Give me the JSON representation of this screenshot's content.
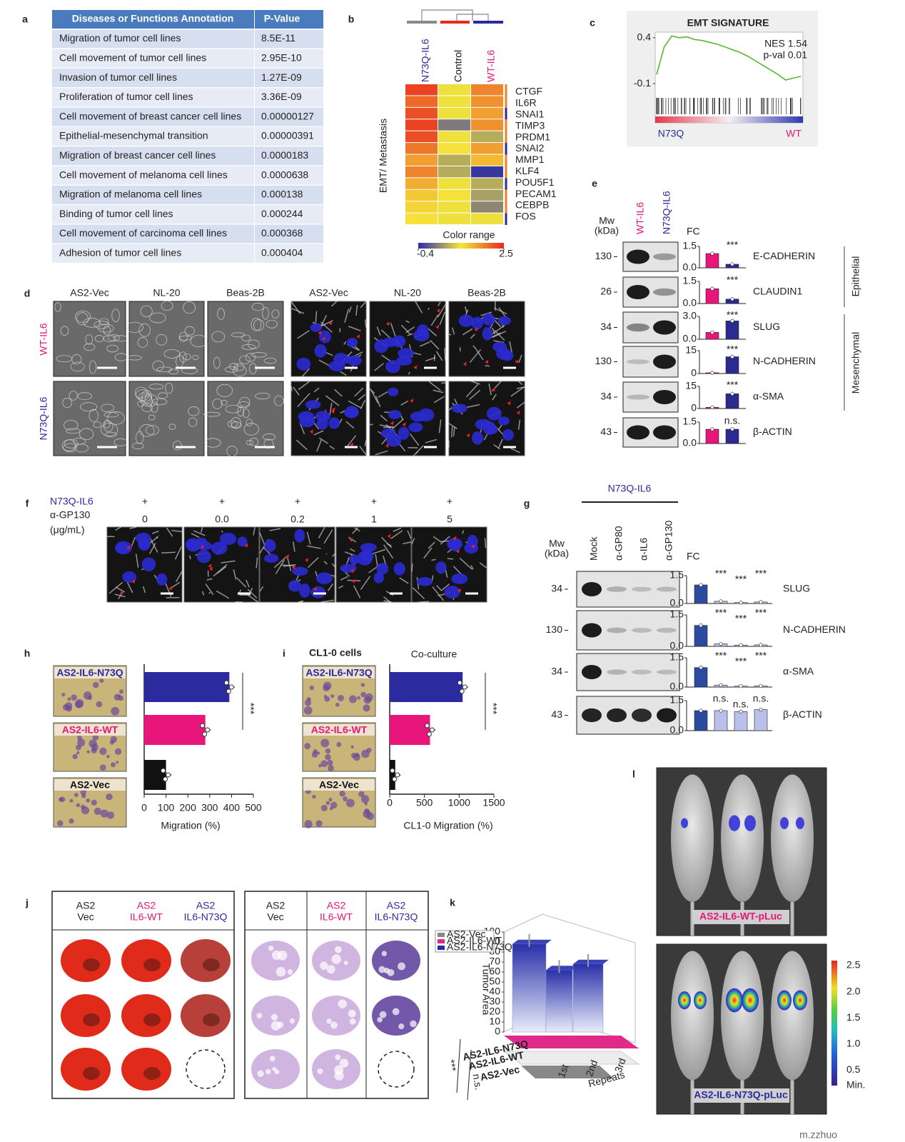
{
  "panel_labels": [
    "a",
    "b",
    "c",
    "d",
    "e",
    "f",
    "g",
    "h",
    "i",
    "j",
    "k",
    "l"
  ],
  "a": {
    "header": [
      "Diseases or Functions Annotation",
      "P-Value"
    ],
    "rows": [
      [
        "Migration of tumor cell lines",
        "8.5E-11"
      ],
      [
        "Cell movement of tumor cell lines",
        "2.95E-10"
      ],
      [
        "Invasion of tumor cell lines",
        "1.27E-09"
      ],
      [
        "Proliferation of tumor cell lines",
        "3.36E-09"
      ],
      [
        "Cell movement of breast cancer cell lines",
        "0.00000127"
      ],
      [
        "Epithelial-mesenchymal transition",
        "0.00000391"
      ],
      [
        "Migration of breast cancer cell lines",
        "0.0000183"
      ],
      [
        "Cell movement of melanoma cell lines",
        "0.0000638"
      ],
      [
        "Migration of melanoma cell lines",
        "0.000138"
      ],
      [
        "Binding of tumor cell lines",
        "0.000244"
      ],
      [
        "Cell movement of carcinoma cell lines",
        "0.000368"
      ],
      [
        "Adhesion of tumor cell lines",
        "0.000404"
      ]
    ]
  },
  "b": {
    "columns": [
      "N73Q-IL6",
      "Control",
      "WT-IL6"
    ],
    "column_colors": [
      "#2b2b9f",
      "#111111",
      "#e8157a"
    ],
    "ylabel": "EMT/ Metastasis",
    "genes": [
      "CTGF",
      "IL6R",
      "SNAI1",
      "TIMP3",
      "PRDM1",
      "SNAI2",
      "MMP1",
      "KLF4",
      "POU5F1",
      "PECAM1",
      "CEBPB",
      "FOS"
    ],
    "matrix": [
      [
        2.3,
        1.0,
        1.8
      ],
      [
        2.0,
        1.0,
        1.7
      ],
      [
        2.2,
        1.0,
        1.6
      ],
      [
        2.3,
        0.2,
        1.7
      ],
      [
        2.2,
        1.0,
        0.6
      ],
      [
        1.9,
        1.1,
        1.6
      ],
      [
        1.6,
        0.6,
        1.4
      ],
      [
        1.8,
        0.6,
        -0.3
      ],
      [
        1.5,
        1.0,
        0.6
      ],
      [
        1.3,
        1.1,
        0.5
      ],
      [
        1.2,
        1.0,
        0.3
      ],
      [
        1.1,
        1.0,
        1.0
      ]
    ],
    "colorbar": {
      "title": "Color range",
      "min": -0.4,
      "max": 2.5,
      "colors": [
        "#2a2aa8",
        "#f5e83a",
        "#e8271f"
      ]
    }
  },
  "c": {
    "title": "EMT SIGNATURE",
    "ylim": [
      -0.2,
      0.5
    ],
    "yticks": [
      0.4,
      -0.1
    ],
    "nes": "NES 1.54",
    "pval": "p-val 0.01",
    "left_label": "N73Q",
    "right_label": "WT",
    "curve": [
      0,
      0.3,
      0.42,
      0.4,
      0.41,
      0.38,
      0.37,
      0.35,
      0.33,
      0.3,
      0.27,
      0.24,
      0.2,
      0.15,
      0.1,
      0.05,
      0.0,
      -0.06,
      -0.04,
      -0.02
    ],
    "color": "#5cb531"
  },
  "d": {
    "columns": [
      "AS2-Vec",
      "NL-20",
      "Beas-2B",
      "AS2-Vec",
      "NL-20",
      "Beas-2B"
    ],
    "rows": [
      "WT-IL6",
      "N73Q-IL6"
    ]
  },
  "e": {
    "lanes": [
      "WT-IL6",
      "N73Q-IL6"
    ],
    "mw_label": [
      "Mw",
      "(kDa)"
    ],
    "fc_label": "FC",
    "groups": [
      "Epithelial",
      "Mesenchymal"
    ],
    "colors": [
      "#e8157a",
      "#2b2b8f"
    ],
    "rows": [
      {
        "mw": 130,
        "protein": "E-CADHERIN",
        "yticks": [
          {
            "value": 0,
            "label": "0.0"
          },
          {
            "value": 1.5,
            "label": "1.5"
          }
        ],
        "values": [
          1.0,
          0.25
        ],
        "sig": "***"
      },
      {
        "mw": 26,
        "protein": "CLAUDIN1",
        "yticks": [
          {
            "value": 0,
            "label": "0.0"
          },
          {
            "value": 1.5,
            "label": "1.5"
          }
        ],
        "values": [
          1.0,
          0.3
        ],
        "sig": "***"
      },
      {
        "mw": 34,
        "protein": "SLUG",
        "yticks": [
          {
            "value": 0,
            "label": "0.0"
          },
          {
            "value": 3,
            "label": "3.0"
          }
        ],
        "values": [
          0.9,
          2.4
        ],
        "sig": "***"
      },
      {
        "mw": 130,
        "protein": "N-CADHERIN",
        "yticks": [
          0,
          15
        ],
        "values": [
          0.5,
          11
        ],
        "sig": "***"
      },
      {
        "mw": 34,
        "protein": "α-SMA",
        "yticks": [
          0,
          15
        ],
        "values": [
          0.8,
          10
        ],
        "sig": "***"
      },
      {
        "mw": 43,
        "protein": "β-ACTIN",
        "yticks": [
          {
            "value": 0,
            "label": "0.0"
          },
          {
            "value": 1.5,
            "label": "1.5"
          }
        ],
        "values": [
          1.0,
          1.0
        ],
        "sig": "n.s."
      }
    ]
  },
  "f": {
    "treatment": "N73Q-IL6",
    "antibody": "α-GP130",
    "unit": "(μg/mL)",
    "plus": [
      "+",
      "+",
      "+",
      "+",
      "+"
    ],
    "doses": [
      "0",
      "0.0",
      "0.2",
      "1",
      "5"
    ]
  },
  "g": {
    "title": "N73Q-IL6",
    "lanes": [
      "Mock",
      "α-GP80",
      "α-IL6",
      "α-GP130"
    ],
    "mw_label": [
      "Mw",
      "(kDa)"
    ],
    "fc_label": "FC",
    "colors": [
      "#2b4aa0",
      "#b9c1ea"
    ],
    "rows": [
      {
        "mw": 34,
        "protein": "SLUG",
        "yticks": [
          {
            "value": 0,
            "label": "0.0"
          },
          {
            "value": 1.5,
            "label": "1.5"
          }
        ],
        "values": [
          1.0,
          0.12,
          0.05,
          0.08
        ],
        "sig": [
          "***",
          "***",
          "***"
        ]
      },
      {
        "mw": 130,
        "protein": "N-CADHERIN",
        "yticks": [
          {
            "value": 0,
            "label": "0.0"
          },
          {
            "value": 1.5,
            "label": "1.5"
          }
        ],
        "values": [
          1.0,
          0.12,
          0.06,
          0.07
        ],
        "sig": [
          "***",
          "***",
          "***"
        ]
      },
      {
        "mw": 34,
        "protein": "α-SMA",
        "yticks": [
          {
            "value": 0,
            "label": "0.0"
          },
          {
            "value": 1.5,
            "label": "1.5"
          }
        ],
        "values": [
          1.0,
          0.1,
          0.05,
          0.06
        ],
        "sig": [
          "***",
          "***",
          "***"
        ]
      },
      {
        "mw": 43,
        "protein": "β-ACTIN",
        "yticks": [
          {
            "value": 0,
            "label": "0.0"
          },
          {
            "value": 1.5,
            "label": "1.5"
          }
        ],
        "values": [
          1.0,
          1.0,
          0.95,
          1.05
        ],
        "sig": [
          "n.s.",
          "n.s.",
          "n.s."
        ]
      }
    ]
  },
  "h": {
    "categories": [
      "AS2-IL6-N73Q",
      "AS2-IL6-WT",
      "AS2-Vec"
    ],
    "values": [
      390,
      280,
      100
    ],
    "colors": [
      "#2b2b9f",
      "#e8157a",
      "#111111"
    ],
    "xlim": [
      0,
      500
    ],
    "xticks": [
      0,
      100,
      200,
      300,
      400,
      500
    ],
    "xlabel": "Migration  (%)",
    "sig": "***"
  },
  "i": {
    "title": "CL1-0 cells",
    "subtitle": "Co-culture",
    "categories": [
      "AS2-IL6-N73Q",
      "AS2-IL6-WT",
      "AS2-Vec"
    ],
    "values": [
      1050,
      580,
      80
    ],
    "colors": [
      "#2b2b9f",
      "#e8157a",
      "#111111"
    ],
    "xlim": [
      0,
      1500
    ],
    "xticks": [
      0,
      500,
      1000,
      1500
    ],
    "xlabel": "CL1-0 Migration  (%)",
    "sig": "***"
  },
  "j": {
    "headers": [
      [
        "AS2",
        "Vec"
      ],
      [
        "AS2",
        "IL6-WT"
      ],
      [
        "AS2",
        "IL6-N73Q"
      ]
    ]
  },
  "k": {
    "legend": [
      "AS2-Vec",
      "AS2-IL6-WT",
      "AS2-IL6-N73Q"
    ],
    "ylabel": "Tumor Area",
    "ylim": [
      0,
      100
    ],
    "yticks": [
      0,
      10,
      20,
      30,
      40,
      50,
      60,
      70,
      80,
      90,
      100
    ],
    "values": [
      88,
      62,
      68
    ],
    "repeats": [
      "1st",
      "2nd",
      "3rd"
    ],
    "xlabel": "Repeats",
    "sig": [
      "***",
      "n.s."
    ]
  },
  "l": {
    "labels": [
      "AS2-IL6-WT-pLuc",
      "AS2-IL6-N73Q-pLuc"
    ],
    "colorbar_ticks": [
      "2.5",
      "2.0",
      "1.5",
      "1.0",
      "0.5"
    ],
    "min_label": "Min."
  },
  "watermark": "m.zzhuo"
}
